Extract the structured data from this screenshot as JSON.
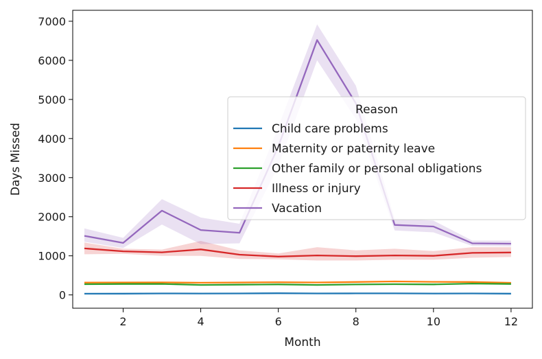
{
  "chart_data": {
    "type": "line",
    "title": "",
    "xlabel": "Month",
    "ylabel": "Days Missed",
    "xlim": [
      0.7,
      12.55
    ],
    "ylim": [
      -340,
      7280
    ],
    "xticks": [
      2,
      4,
      6,
      8,
      10,
      12
    ],
    "yticks": [
      0,
      1000,
      2000,
      3000,
      4000,
      5000,
      6000,
      7000
    ],
    "grid": false,
    "legend": {
      "title": "Reason",
      "placement": "center-right"
    },
    "x": [
      1,
      2,
      3,
      4,
      5,
      6,
      7,
      8,
      9,
      10,
      11,
      12
    ],
    "series": [
      {
        "name": "Child care problems",
        "color": "#1f77b4",
        "values": [
          30,
          32,
          38,
          36,
          38,
          42,
          38,
          40,
          40,
          36,
          38,
          32
        ],
        "ci_low": [
          22,
          24,
          30,
          28,
          30,
          34,
          30,
          32,
          32,
          28,
          30,
          24
        ],
        "ci_high": [
          38,
          40,
          46,
          44,
          46,
          50,
          46,
          48,
          48,
          44,
          46,
          40
        ]
      },
      {
        "name": "Maternity or paternity leave",
        "color": "#ff7f0e",
        "values": [
          315,
          318,
          320,
          312,
          318,
          325,
          318,
          330,
          345,
          335,
          330,
          310
        ],
        "ci_low": [
          300,
          303,
          305,
          297,
          303,
          310,
          303,
          315,
          330,
          320,
          315,
          295
        ],
        "ci_high": [
          330,
          333,
          335,
          327,
          333,
          340,
          333,
          345,
          360,
          350,
          345,
          325
        ]
      },
      {
        "name": "Other family or personal obligations",
        "color": "#2ca02c",
        "values": [
          275,
          280,
          282,
          255,
          262,
          270,
          255,
          268,
          275,
          270,
          290,
          280
        ],
        "ci_low": [
          260,
          265,
          267,
          240,
          247,
          255,
          240,
          253,
          260,
          255,
          275,
          265
        ],
        "ci_high": [
          290,
          295,
          297,
          270,
          277,
          285,
          270,
          283,
          290,
          285,
          305,
          295
        ]
      },
      {
        "name": "Illness or injury",
        "color": "#d62728",
        "values": [
          1190,
          1115,
          1090,
          1165,
          1030,
          980,
          1010,
          990,
          1010,
          1000,
          1075,
          1085
        ],
        "ci_low": [
          1040,
          1050,
          1000,
          1000,
          920,
          910,
          880,
          880,
          900,
          900,
          950,
          970
        ],
        "ci_high": [
          1340,
          1180,
          1160,
          1380,
          1140,
          1060,
          1220,
          1140,
          1180,
          1120,
          1220,
          1220
        ]
      },
      {
        "name": "Vacation",
        "color": "#9467bd",
        "values": [
          1510,
          1330,
          2155,
          1660,
          1590,
          3800,
          6520,
          4900,
          1790,
          1750,
          1320,
          1310
        ],
        "ci_low": [
          1360,
          1200,
          1800,
          1300,
          1320,
          3300,
          6000,
          4500,
          1650,
          1600,
          1250,
          1240
        ],
        "ci_high": [
          1700,
          1460,
          2450,
          1980,
          1820,
          4300,
          6920,
          5350,
          1950,
          1900,
          1390,
          1390
        ]
      }
    ]
  }
}
